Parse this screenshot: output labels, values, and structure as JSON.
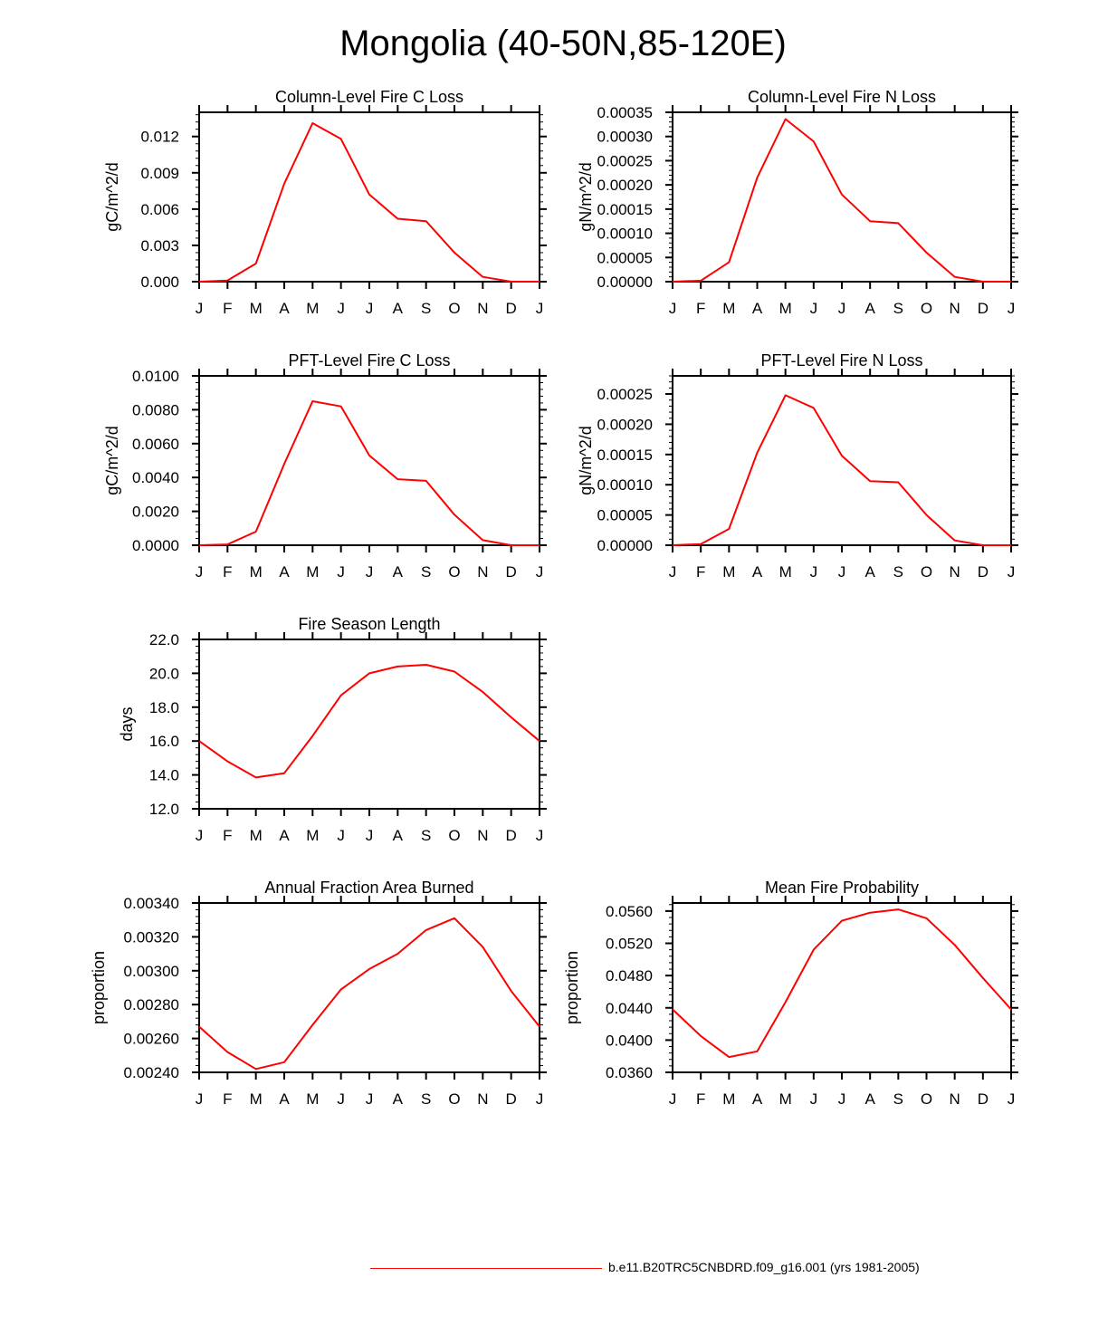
{
  "page_title": "Mongolia (40-50N,85-120E)",
  "legend": {
    "label": "b.e11.B20TRC5CNBDRD.f09_g16.001 (yrs 1981-2005)",
    "color": "#ff0000"
  },
  "line_color": "#ff0000",
  "chart_data": [
    {
      "type": "line",
      "title": "Column-Level Fire C Loss",
      "ylabel": "gC/m^2/d",
      "xlabel": "",
      "categories": [
        "J",
        "F",
        "M",
        "A",
        "M",
        "J",
        "J",
        "A",
        "S",
        "O",
        "N",
        "D",
        "J"
      ],
      "values": [
        0.0,
        0.0001,
        0.0015,
        0.0081,
        0.0131,
        0.0118,
        0.0072,
        0.0052,
        0.005,
        0.0024,
        0.0004,
        0.0,
        0.0
      ],
      "ylim": [
        0,
        0.014
      ],
      "yticks": [
        0,
        0.003,
        0.006,
        0.009,
        0.012
      ],
      "ytick_labels": [
        "0.000",
        "0.003",
        "0.006",
        "0.009",
        "0.012"
      ]
    },
    {
      "type": "line",
      "title": "Column-Level Fire N Loss",
      "ylabel": "gN/m^2/d",
      "xlabel": "",
      "categories": [
        "J",
        "F",
        "M",
        "A",
        "M",
        "J",
        "J",
        "A",
        "S",
        "O",
        "N",
        "D",
        "J"
      ],
      "values": [
        0.0,
        2e-06,
        4e-05,
        0.000215,
        0.000336,
        0.00029,
        0.00018,
        0.000125,
        0.000121,
        6e-05,
        1e-05,
        0.0,
        0.0
      ],
      "ylim": [
        0,
        0.00035
      ],
      "yticks": [
        0,
        5e-05,
        0.0001,
        0.00015,
        0.0002,
        0.00025,
        0.0003,
        0.00035
      ],
      "ytick_labels": [
        "0.00000",
        "0.00005",
        "0.00010",
        "0.00015",
        "0.00020",
        "0.00025",
        "0.00030",
        "0.00035"
      ]
    },
    {
      "type": "line",
      "title": "PFT-Level Fire C Loss",
      "ylabel": "gC/m^2/d",
      "xlabel": "",
      "categories": [
        "J",
        "F",
        "M",
        "A",
        "M",
        "J",
        "J",
        "A",
        "S",
        "O",
        "N",
        "D",
        "J"
      ],
      "values": [
        0.0,
        5e-05,
        0.0008,
        0.0048,
        0.0085,
        0.0082,
        0.0053,
        0.0039,
        0.0038,
        0.0018,
        0.0003,
        0.0,
        0.0
      ],
      "ylim": [
        0,
        0.01
      ],
      "yticks": [
        0,
        0.002,
        0.004,
        0.006,
        0.008,
        0.01
      ],
      "ytick_labels": [
        "0.0000",
        "0.0020",
        "0.0040",
        "0.0060",
        "0.0080",
        "0.0100"
      ]
    },
    {
      "type": "line",
      "title": "PFT-Level Fire N Loss",
      "ylabel": "gN/m^2/d",
      "xlabel": "",
      "categories": [
        "J",
        "F",
        "M",
        "A",
        "M",
        "J",
        "J",
        "A",
        "S",
        "O",
        "N",
        "D",
        "J"
      ],
      "values": [
        0.0,
        2e-06,
        2.7e-05,
        0.000153,
        0.000248,
        0.000227,
        0.000148,
        0.000106,
        0.000104,
        5e-05,
        8e-06,
        0.0,
        0.0
      ],
      "ylim": [
        0,
        0.00028
      ],
      "yticks": [
        0,
        5e-05,
        0.0001,
        0.00015,
        0.0002,
        0.00025
      ],
      "ytick_labels": [
        "0.00000",
        "0.00005",
        "0.00010",
        "0.00015",
        "0.00020",
        "0.00025"
      ]
    },
    {
      "type": "line",
      "title": "Fire Season Length",
      "ylabel": "days",
      "xlabel": "",
      "categories": [
        "J",
        "F",
        "M",
        "A",
        "M",
        "J",
        "J",
        "A",
        "S",
        "O",
        "N",
        "D",
        "J"
      ],
      "values": [
        16.0,
        14.8,
        13.85,
        14.1,
        16.3,
        18.7,
        20.0,
        20.4,
        20.5,
        20.1,
        18.9,
        17.4,
        16.0
      ],
      "ylim": [
        12,
        22
      ],
      "yticks": [
        12,
        14,
        16,
        18,
        20,
        22
      ],
      "ytick_labels": [
        "12.0",
        "14.0",
        "16.0",
        "18.0",
        "20.0",
        "22.0"
      ]
    },
    {
      "type": "line",
      "title": "Annual Fraction Area Burned",
      "ylabel": "proportion",
      "xlabel": "",
      "categories": [
        "J",
        "F",
        "M",
        "A",
        "M",
        "J",
        "J",
        "A",
        "S",
        "O",
        "N",
        "D",
        "J"
      ],
      "values": [
        0.00267,
        0.00252,
        0.00242,
        0.00246,
        0.00268,
        0.00289,
        0.00301,
        0.0031,
        0.00324,
        0.00331,
        0.00314,
        0.00288,
        0.00267
      ],
      "ylim": [
        0.0024,
        0.0034
      ],
      "yticks": [
        0.0024,
        0.0026,
        0.0028,
        0.003,
        0.0032,
        0.0034
      ],
      "ytick_labels": [
        "0.00240",
        "0.00260",
        "0.00280",
        "0.00300",
        "0.00320",
        "0.00340"
      ]
    },
    {
      "type": "line",
      "title": "Mean Fire Probability",
      "ylabel": "proportion",
      "xlabel": "",
      "categories": [
        "J",
        "F",
        "M",
        "A",
        "M",
        "J",
        "J",
        "A",
        "S",
        "O",
        "N",
        "D",
        "J"
      ],
      "values": [
        0.0438,
        0.0405,
        0.0379,
        0.0386,
        0.0447,
        0.0512,
        0.0548,
        0.0558,
        0.0562,
        0.0551,
        0.0518,
        0.0477,
        0.0438
      ],
      "ylim": [
        0.036,
        0.057
      ],
      "yticks": [
        0.036,
        0.04,
        0.044,
        0.048,
        0.052,
        0.056
      ],
      "ytick_labels": [
        "0.0360",
        "0.0400",
        "0.0440",
        "0.0480",
        "0.0520",
        "0.0560"
      ]
    }
  ]
}
